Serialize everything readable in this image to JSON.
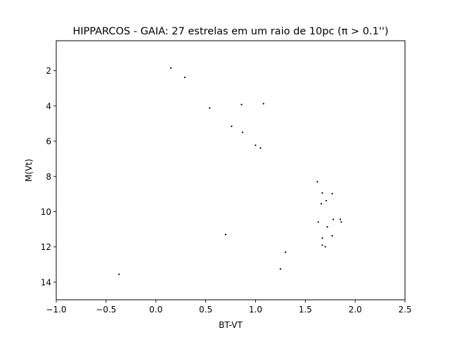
{
  "chart_data": {
    "type": "scatter",
    "title": "HIPPARCOS - GAIA: 27 estrelas em um raio de 10pc (π > 0.1'')",
    "xlabel": "BT-VT",
    "ylabel": "M(Vt)",
    "xlim": [
      -1.0,
      2.5
    ],
    "ylim": [
      15.0,
      0.3
    ],
    "y_inverted": true,
    "grid": false,
    "legend": "none",
    "marker_color": "#000000",
    "xticks": [
      -1.0,
      -0.5,
      0.0,
      0.5,
      1.0,
      1.5,
      2.0,
      2.5
    ],
    "xtick_labels": [
      "−1.0",
      "−0.5",
      "0.0",
      "0.5",
      "1.0",
      "1.5",
      "2.0",
      "2.5"
    ],
    "yticks": [
      2,
      4,
      6,
      8,
      10,
      12,
      14
    ],
    "ytick_labels": [
      "2",
      "4",
      "6",
      "8",
      "10",
      "12",
      "14"
    ],
    "points": [
      {
        "x": 0.15,
        "y": 1.85
      },
      {
        "x": 0.29,
        "y": 2.38
      },
      {
        "x": 0.54,
        "y": 4.12
      },
      {
        "x": 0.86,
        "y": 3.92
      },
      {
        "x": 1.08,
        "y": 3.87
      },
      {
        "x": 0.76,
        "y": 5.16
      },
      {
        "x": 0.87,
        "y": 5.5
      },
      {
        "x": 1.0,
        "y": 6.23
      },
      {
        "x": 1.05,
        "y": 6.39
      },
      {
        "x": 1.62,
        "y": 8.3
      },
      {
        "x": 1.67,
        "y": 8.94
      },
      {
        "x": 1.77,
        "y": 8.98
      },
      {
        "x": 1.71,
        "y": 9.38
      },
      {
        "x": 1.66,
        "y": 9.55
      },
      {
        "x": 1.78,
        "y": 10.44
      },
      {
        "x": 1.85,
        "y": 10.44
      },
      {
        "x": 1.86,
        "y": 10.59
      },
      {
        "x": 1.63,
        "y": 10.59
      },
      {
        "x": 1.72,
        "y": 10.86
      },
      {
        "x": 0.7,
        "y": 11.3
      },
      {
        "x": 1.67,
        "y": 11.5
      },
      {
        "x": 1.77,
        "y": 11.37
      },
      {
        "x": 1.67,
        "y": 11.9
      },
      {
        "x": 1.7,
        "y": 11.99
      },
      {
        "x": 1.3,
        "y": 12.3
      },
      {
        "x": 1.25,
        "y": 13.25
      },
      {
        "x": -0.37,
        "y": 13.55
      }
    ]
  }
}
